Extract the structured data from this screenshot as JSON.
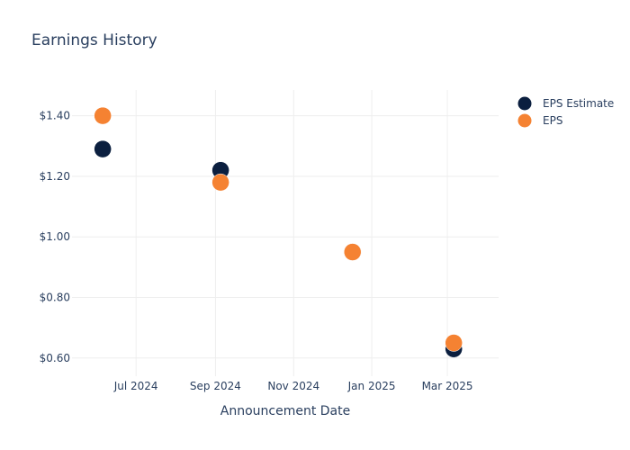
{
  "chart_data": {
    "type": "scatter",
    "title": "Earnings History",
    "xlabel": "Announcement Date",
    "ylabel": "",
    "x_axis_type": "date",
    "xlim": [
      "2024-05-12",
      "2025-04-10"
    ],
    "ylim": [
      0.54,
      1.485
    ],
    "x_ticks": [
      {
        "value": "2024-07-01",
        "label": "Jul 2024"
      },
      {
        "value": "2024-09-01",
        "label": "Sep 2024"
      },
      {
        "value": "2024-11-01",
        "label": "Nov 2024"
      },
      {
        "value": "2025-01-01",
        "label": "Jan 2025"
      },
      {
        "value": "2025-03-01",
        "label": "Mar 2025"
      }
    ],
    "y_ticks": [
      {
        "value": 0.6,
        "label": "$0.60"
      },
      {
        "value": 0.8,
        "label": "$0.80"
      },
      {
        "value": 1.0,
        "label": "$1.00"
      },
      {
        "value": 1.2,
        "label": "$1.20"
      },
      {
        "value": 1.4,
        "label": "$1.40"
      }
    ],
    "grid": true,
    "legend_position": "top-right",
    "series": [
      {
        "name": "EPS Estimate",
        "color": "#0b1f3f",
        "points": [
          {
            "x": "2024-06-05",
            "y": 1.29
          },
          {
            "x": "2024-09-05",
            "y": 1.22
          },
          {
            "x": "2024-12-17",
            "y": 0.95
          },
          {
            "x": "2025-03-06",
            "y": 0.63
          }
        ]
      },
      {
        "name": "EPS",
        "color": "#f58232",
        "points": [
          {
            "x": "2024-06-05",
            "y": 1.4
          },
          {
            "x": "2024-09-05",
            "y": 1.18
          },
          {
            "x": "2024-12-17",
            "y": 0.95
          },
          {
            "x": "2025-03-06",
            "y": 0.65
          }
        ]
      }
    ]
  }
}
